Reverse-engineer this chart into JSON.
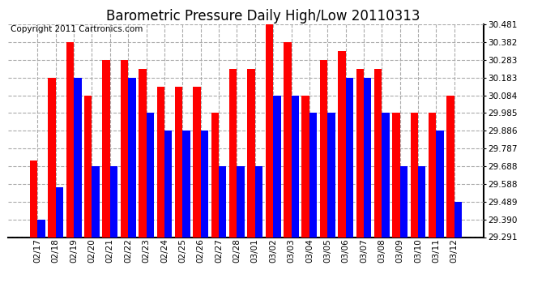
{
  "title": "Barometric Pressure Daily High/Low 20110313",
  "copyright": "Copyright 2011 Cartronics.com",
  "dates": [
    "02/17",
    "02/18",
    "02/19",
    "02/20",
    "02/21",
    "02/22",
    "02/23",
    "02/24",
    "02/25",
    "02/26",
    "02/27",
    "02/28",
    "03/01",
    "03/02",
    "03/03",
    "03/04",
    "03/05",
    "03/06",
    "03/07",
    "03/08",
    "03/09",
    "03/10",
    "03/11",
    "03/12"
  ],
  "highs": [
    29.72,
    30.183,
    30.382,
    30.084,
    30.283,
    30.283,
    30.233,
    30.133,
    30.133,
    30.133,
    29.985,
    30.233,
    30.233,
    30.481,
    30.382,
    30.084,
    30.283,
    30.332,
    30.233,
    30.233,
    29.985,
    29.985,
    29.985,
    30.084
  ],
  "lows": [
    29.39,
    29.57,
    30.183,
    29.688,
    29.688,
    30.183,
    29.985,
    29.886,
    29.886,
    29.886,
    29.688,
    29.688,
    29.688,
    30.084,
    30.084,
    29.985,
    29.985,
    30.183,
    30.183,
    29.985,
    29.688,
    29.688,
    29.886,
    29.489
  ],
  "ymin": 29.291,
  "ymax": 30.481,
  "yticks": [
    29.291,
    29.39,
    29.489,
    29.588,
    29.688,
    29.787,
    29.886,
    29.985,
    30.084,
    30.183,
    30.283,
    30.382,
    30.481
  ],
  "high_color": "#ff0000",
  "low_color": "#0000ff",
  "bg_color": "#ffffff",
  "grid_color": "#aaaaaa",
  "title_fontsize": 12,
  "copyright_fontsize": 7.5
}
